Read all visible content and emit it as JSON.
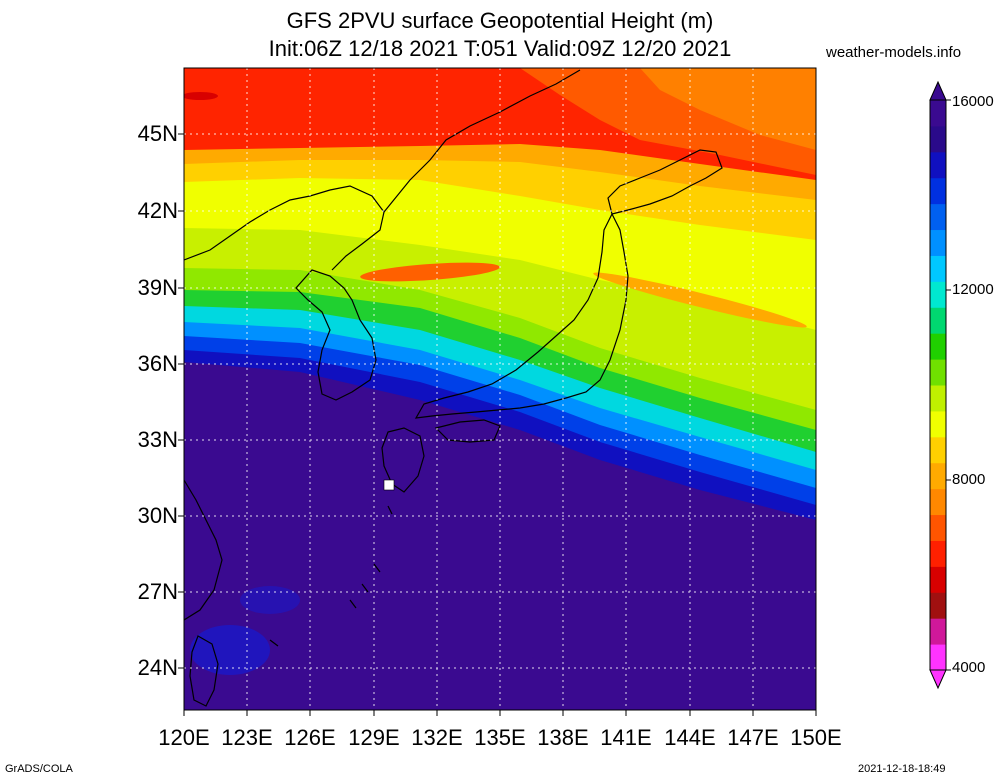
{
  "title": {
    "line1": "GFS 2PVU surface Geopotential Height (m)",
    "line2": "Init:06Z 12/18 2021 T:051 Valid:09Z 12/20 2021"
  },
  "site_label": "weather-models.info",
  "lat_labels": [
    "45N",
    "42N",
    "39N",
    "36N",
    "33N",
    "30N",
    "27N",
    "24N"
  ],
  "lon_labels": [
    "120E",
    "123E",
    "126E",
    "129E",
    "132E",
    "135E",
    "138E",
    "141E",
    "144E",
    "147E",
    "150E"
  ],
  "colorbar": {
    "labels": [
      "16000",
      "12000",
      "8000",
      "4000"
    ],
    "colors": [
      "#ff33ff",
      "#d0189a",
      "#a01010",
      "#d80000",
      "#ff2000",
      "#ff5500",
      "#ff8800",
      "#ffaa00",
      "#ffd000",
      "#f0ff00",
      "#c0f000",
      "#70e000",
      "#20d000",
      "#00d870",
      "#00e8d0",
      "#00c8ff",
      "#0090ff",
      "#0060f0",
      "#0030e0",
      "#1010c0",
      "#2a0a8a",
      "#3a0a90"
    ]
  },
  "footer": {
    "left": "GrADS/COLA",
    "right": "2021-12-18-18:49"
  },
  "colors": {
    "deep_stratosphere": "#3a0a90",
    "jet_core": "#f0ff00",
    "low_height": "#ff2000",
    "grid": "#ffffff",
    "coast": "#000000"
  }
}
